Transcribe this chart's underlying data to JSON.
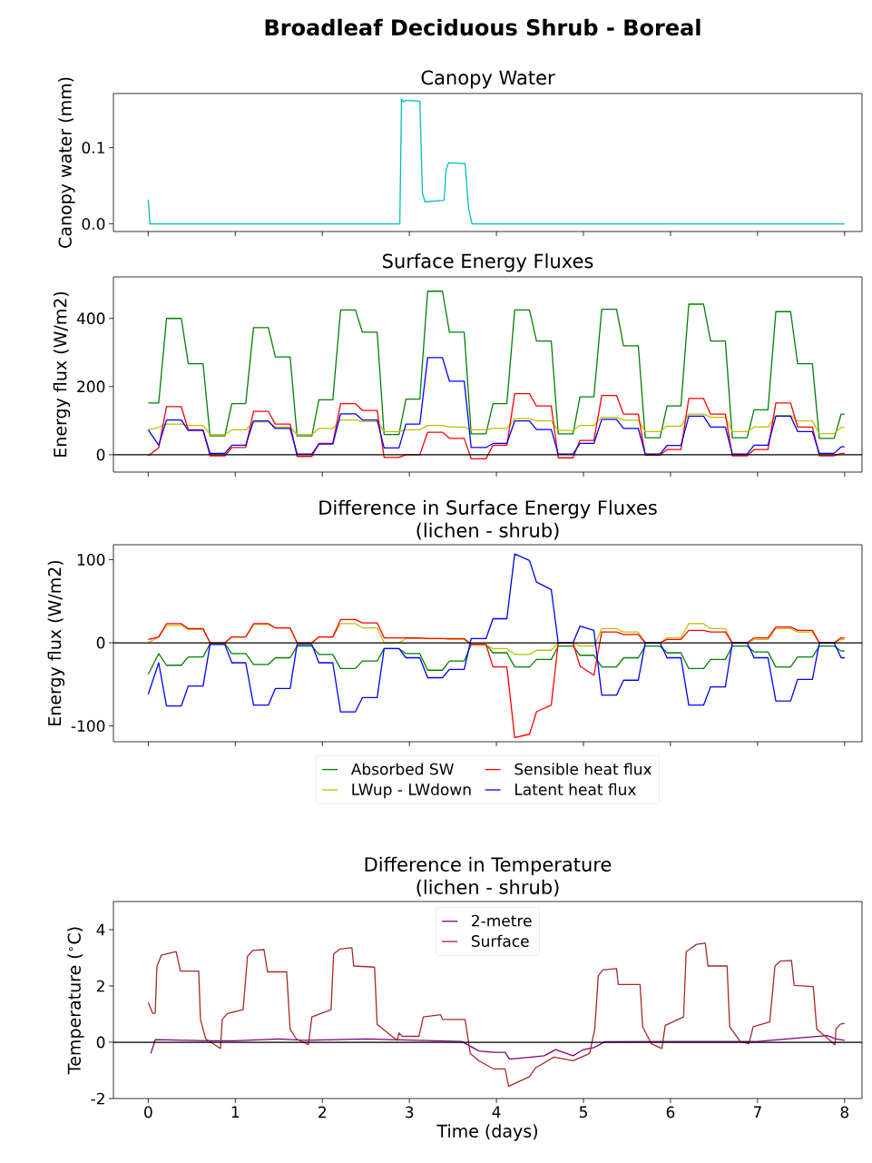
{
  "chart_data": [
    {
      "type": "line",
      "title": "Broadleaf Deciduous Shrub - Boreal",
      "subtitle": "Canopy Water",
      "ylabel": "Canopy water (mm)",
      "xlim": [
        -0.4,
        8.2
      ],
      "ylim": [
        -0.01,
        0.171
      ],
      "xticks": [
        0,
        1,
        2,
        3,
        4,
        5,
        6,
        7,
        8
      ],
      "yticks": [
        {
          "value": 0,
          "label": "0.0"
        },
        {
          "value": 0.1,
          "label": "0.1"
        }
      ],
      "tick_labels": "y",
      "series": [
        {
          "color": "#00bfbf",
          "x": [
            0,
            0.02,
            2.89,
            2.91,
            2.93,
            2.96,
            3.12,
            3.15,
            3.18,
            3.4,
            3.42,
            3.45,
            3.64,
            3.68,
            3.72,
            8
          ],
          "values": [
            0.032,
            0,
            0,
            0.164,
            0.16,
            0.162,
            0.161,
            0.04,
            0.029,
            0.031,
            0.07,
            0.08,
            0.079,
            0.02,
            0,
            0
          ]
        }
      ]
    },
    {
      "type": "line",
      "title": "Surface Energy Fluxes",
      "ylabel": "Energy flux (W/m2)",
      "xlim": [
        -0.4,
        8.2
      ],
      "ylim": [
        -51,
        522
      ],
      "xticks": [
        0,
        1,
        2,
        3,
        4,
        5,
        6,
        7,
        8
      ],
      "yticks": [
        0,
        200,
        400
      ],
      "tick_labels": "y",
      "ref_lines": [
        {
          "axis": "y",
          "value": 0,
          "color": "#000000"
        }
      ],
      "x": [
        0,
        0.12,
        0.21,
        0.38,
        0.46,
        0.63,
        0.71,
        0.88,
        0.96,
        1.12,
        1.21,
        1.38,
        1.46,
        1.63,
        1.71,
        1.88,
        1.96,
        2.12,
        2.21,
        2.38,
        2.46,
        2.63,
        2.71,
        2.88,
        2.96,
        3.12,
        3.21,
        3.38,
        3.46,
        3.63,
        3.71,
        3.88,
        3.96,
        4.12,
        4.21,
        4.38,
        4.46,
        4.63,
        4.71,
        4.88,
        4.96,
        5.12,
        5.21,
        5.38,
        5.46,
        5.63,
        5.71,
        5.88,
        5.96,
        6.12,
        6.21,
        6.38,
        6.46,
        6.63,
        6.71,
        6.88,
        6.96,
        7.12,
        7.21,
        7.38,
        7.46,
        7.63,
        7.71,
        7.88,
        7.96,
        8
      ],
      "series": [
        {
          "color": "#008000",
          "values": [
            152,
            152,
            400,
            400,
            267,
            267,
            55,
            55,
            150,
            150,
            373,
            373,
            287,
            287,
            55,
            55,
            161,
            161,
            425,
            425,
            360,
            360,
            59,
            59,
            163,
            163,
            480,
            480,
            360,
            360,
            61,
            61,
            150,
            150,
            425,
            425,
            334,
            334,
            61,
            61,
            170,
            170,
            427,
            427,
            320,
            320,
            50,
            50,
            143,
            143,
            442,
            442,
            334,
            334,
            50,
            50,
            132,
            132,
            420,
            420,
            267,
            267,
            48,
            48,
            119,
            119
          ]
        },
        {
          "color": "#bfbf00",
          "values": [
            73,
            80,
            90,
            90,
            86,
            86,
            59,
            59,
            73,
            73,
            96,
            96,
            81,
            81,
            59,
            59,
            77,
            77,
            102,
            102,
            97,
            97,
            68,
            68,
            73,
            73,
            86,
            86,
            81,
            81,
            73,
            73,
            77,
            77,
            106,
            106,
            99,
            99,
            71,
            71,
            86,
            86,
            110,
            110,
            101,
            101,
            68,
            68,
            84,
            84,
            119,
            119,
            110,
            110,
            68,
            68,
            81,
            81,
            115,
            115,
            99,
            99,
            62,
            62,
            80,
            80
          ]
        },
        {
          "color": "#ff0000",
          "values": [
            -3,
            20,
            141,
            141,
            73,
            73,
            -3,
            -3,
            21,
            21,
            127,
            127,
            90,
            90,
            -5,
            -5,
            33,
            33,
            150,
            150,
            130,
            130,
            -8,
            -8,
            0,
            0,
            66,
            66,
            48,
            48,
            -12,
            -12,
            28,
            28,
            179,
            179,
            143,
            143,
            -9,
            -9,
            42,
            42,
            174,
            174,
            119,
            119,
            -1,
            -1,
            15,
            15,
            165,
            165,
            119,
            119,
            -3,
            -3,
            15,
            15,
            152,
            152,
            81,
            81,
            -3,
            -3,
            4,
            4
          ]
        },
        {
          "color": "#0000ff",
          "values": [
            73,
            28,
            102,
            102,
            71,
            71,
            4,
            4,
            28,
            28,
            99,
            99,
            77,
            77,
            2,
            2,
            31,
            31,
            120,
            120,
            102,
            102,
            20,
            20,
            90,
            90,
            285,
            285,
            216,
            216,
            21,
            21,
            33,
            33,
            99,
            99,
            74,
            74,
            2,
            2,
            33,
            33,
            104,
            104,
            77,
            77,
            2,
            2,
            27,
            27,
            113,
            113,
            81,
            81,
            2,
            2,
            28,
            28,
            113,
            113,
            68,
            68,
            4,
            4,
            23,
            23
          ]
        }
      ]
    },
    {
      "type": "line",
      "title": "Difference in Surface Energy Fluxes",
      "subtitle": "(lichen - shrub)",
      "ylabel": "Energy flux (W/m2)",
      "xlim": [
        -0.4,
        8.2
      ],
      "ylim": [
        -119,
        118
      ],
      "xticks": [
        0,
        1,
        2,
        3,
        4,
        5,
        6,
        7,
        8
      ],
      "yticks": [
        -100,
        0,
        100
      ],
      "tick_labels": "y",
      "legend": "bottom",
      "ref_lines": [
        {
          "axis": "y",
          "value": 0,
          "color": "#000000"
        }
      ],
      "x": [
        0,
        0.12,
        0.21,
        0.38,
        0.46,
        0.63,
        0.71,
        0.88,
        0.96,
        1.12,
        1.21,
        1.38,
        1.46,
        1.63,
        1.71,
        1.88,
        1.96,
        2.12,
        2.21,
        2.38,
        2.46,
        2.63,
        2.71,
        2.88,
        2.96,
        3.12,
        3.21,
        3.38,
        3.46,
        3.63,
        3.71,
        3.88,
        3.96,
        4.12,
        4.21,
        4.38,
        4.46,
        4.63,
        4.71,
        4.88,
        4.96,
        5.12,
        5.21,
        5.38,
        5.46,
        5.63,
        5.71,
        5.88,
        5.96,
        6.12,
        6.21,
        6.38,
        6.46,
        6.63,
        6.71,
        6.88,
        6.96,
        7.12,
        7.21,
        7.38,
        7.46,
        7.63,
        7.71,
        7.88,
        7.96,
        8
      ],
      "series": [
        {
          "name": "Absorbed SW",
          "color": "#008000",
          "values": [
            -38,
            -13,
            -27,
            -27,
            -17,
            -17,
            -1,
            -1,
            -13,
            -13,
            -26,
            -26,
            -18,
            -18,
            -4,
            -4,
            -14,
            -14,
            -31,
            -31,
            -22,
            -22,
            -7,
            -7,
            -13,
            -13,
            -33,
            -33,
            -22,
            -22,
            -2,
            -2,
            -12,
            -12,
            -29,
            -29,
            -20,
            -20,
            -4,
            -4,
            -15,
            -15,
            -29,
            -29,
            -18,
            -18,
            -4,
            -4,
            -12,
            -12,
            -31,
            -31,
            -20,
            -20,
            -4,
            -4,
            -11,
            -11,
            -29,
            -29,
            -17,
            -17,
            -4,
            -4,
            -10,
            -10
          ]
        },
        {
          "name": "LWup - LWdown",
          "color": "#bfbf00",
          "values": [
            0,
            7,
            21,
            21,
            16,
            16,
            0,
            0,
            7,
            7,
            22,
            22,
            18,
            18,
            0,
            0,
            7,
            7,
            23,
            23,
            18,
            18,
            0,
            0,
            5,
            5,
            5,
            5,
            4,
            4,
            -2,
            -2,
            -7,
            -7,
            -14,
            -14,
            -9,
            -9,
            0,
            0,
            -4,
            -4,
            17,
            17,
            13,
            13,
            0,
            0,
            6,
            6,
            23,
            23,
            17,
            17,
            0,
            0,
            4,
            4,
            17,
            17,
            13,
            13,
            0,
            0,
            4,
            4
          ]
        },
        {
          "name": "Sensible heat flux",
          "color": "#ff0000",
          "values": [
            4,
            7,
            23,
            23,
            17,
            17,
            0,
            0,
            7,
            7,
            23,
            23,
            18,
            18,
            0,
            0,
            7,
            7,
            28,
            28,
            24,
            24,
            6,
            6,
            6,
            6,
            5,
            5,
            5,
            5,
            -2,
            -2,
            -29,
            -29,
            -114,
            -110,
            -83,
            -75,
            0,
            0,
            -28,
            -39,
            13,
            13,
            10,
            10,
            0,
            0,
            4,
            4,
            15,
            15,
            13,
            13,
            0,
            0,
            6,
            6,
            19,
            19,
            15,
            15,
            0,
            0,
            6,
            6
          ]
        },
        {
          "name": "Latent heat flux",
          "color": "#0000ff",
          "values": [
            -62,
            -24,
            -76,
            -76,
            -52,
            -52,
            -2,
            -2,
            -24,
            -24,
            -75,
            -75,
            -55,
            -55,
            -2,
            -2,
            -24,
            -24,
            -83,
            -83,
            -66,
            -66,
            -7,
            -7,
            -18,
            -18,
            -42,
            -42,
            -32,
            -32,
            5,
            5,
            29,
            29,
            107,
            99,
            73,
            64,
            0,
            0,
            20,
            15,
            -63,
            -63,
            -45,
            -45,
            0,
            0,
            -18,
            -18,
            -75,
            -75,
            -53,
            -53,
            0,
            0,
            -18,
            -18,
            -70,
            -70,
            -44,
            -44,
            0,
            0,
            -18,
            -18
          ]
        }
      ]
    },
    {
      "type": "line",
      "title": "Difference in Temperature",
      "subtitle": "(lichen - shrub)",
      "xlabel": "Time (days)",
      "ylabel": "Temperature ($^{∘}$C)",
      "xlim": [
        -0.4,
        8.2
      ],
      "ylim": [
        -2,
        5
      ],
      "xticks": [
        0,
        1,
        2,
        3,
        4,
        5,
        6,
        7,
        8
      ],
      "yticks": [
        -2,
        0,
        2,
        4
      ],
      "legend": "top",
      "ref_lines": [
        {
          "axis": "y",
          "value": 0,
          "color": "#000000"
        }
      ],
      "series": [
        {
          "name": "2-metre",
          "color": "#800080",
          "x": [
            0.03,
            0.08,
            0.7,
            1.0,
            1.5,
            1.8,
            2.5,
            3.1,
            3.6,
            3.7,
            3.8,
            3.97,
            4.1,
            4.15,
            4.4,
            4.55,
            4.68,
            4.88,
            5.0,
            5.12,
            5.25,
            6.0,
            7.0,
            7.8,
            7.9,
            8
          ],
          "values": [
            -0.4,
            0.09,
            0.05,
            0.05,
            0.12,
            0.07,
            0.12,
            0.07,
            0.03,
            -0.14,
            -0.31,
            -0.36,
            -0.36,
            -0.6,
            -0.53,
            -0.48,
            -0.26,
            -0.48,
            -0.26,
            -0.19,
            0.02,
            0.03,
            0.03,
            0.24,
            0.12,
            0.07
          ]
        },
        {
          "name": "Surface",
          "color": "#a52a2a",
          "x": [
            0,
            0.05,
            0.08,
            0.1,
            0.15,
            0.32,
            0.37,
            0.58,
            0.6,
            0.66,
            0.83,
            0.85,
            0.91,
            1.09,
            1.14,
            1.2,
            1.33,
            1.37,
            1.59,
            1.63,
            1.7,
            1.84,
            1.88,
            2.1,
            2.13,
            2.2,
            2.34,
            2.36,
            2.6,
            2.63,
            2.8,
            2.86,
            2.88,
            2.92,
            3.11,
            3.16,
            3.36,
            3.38,
            3.64,
            3.7,
            3.8,
            3.97,
            4.1,
            4.14,
            4.38,
            4.45,
            4.66,
            4.88,
            5.07,
            5.13,
            5.17,
            5.22,
            5.38,
            5.4,
            5.65,
            5.68,
            5.78,
            5.9,
            5.94,
            6.15,
            6.18,
            6.3,
            6.4,
            6.43,
            6.65,
            6.68,
            6.8,
            6.9,
            6.95,
            7.14,
            7.2,
            7.26,
            7.39,
            7.42,
            7.64,
            7.68,
            7.89,
            7.9,
            7.95,
            8
          ],
          "values": [
            1.41,
            1.03,
            1.03,
            2.7,
            3.09,
            3.22,
            2.53,
            2.53,
            0.81,
            0.12,
            -0.22,
            0.81,
            1.02,
            1.16,
            3.05,
            3.26,
            3.29,
            2.5,
            2.5,
            0.47,
            0.12,
            -0.09,
            0.9,
            1.16,
            3.14,
            3.31,
            3.36,
            2.71,
            2.67,
            0.64,
            0.21,
            0.07,
            0.33,
            0.21,
            0.21,
            0.9,
            0.98,
            0.81,
            0.81,
            -0.4,
            -0.66,
            -0.95,
            -0.95,
            -1.57,
            -1.22,
            -0.91,
            -0.53,
            -0.66,
            -0.4,
            0.47,
            2.36,
            2.57,
            2.62,
            2.05,
            2.05,
            0.55,
            -0.05,
            -0.22,
            0.6,
            0.9,
            3.22,
            3.48,
            3.52,
            2.71,
            2.71,
            0.55,
            0.03,
            -0.05,
            0.55,
            0.72,
            2.71,
            2.88,
            2.91,
            2.02,
            1.98,
            0.47,
            -0.09,
            0.47,
            0.64,
            0.67
          ]
        }
      ]
    }
  ]
}
